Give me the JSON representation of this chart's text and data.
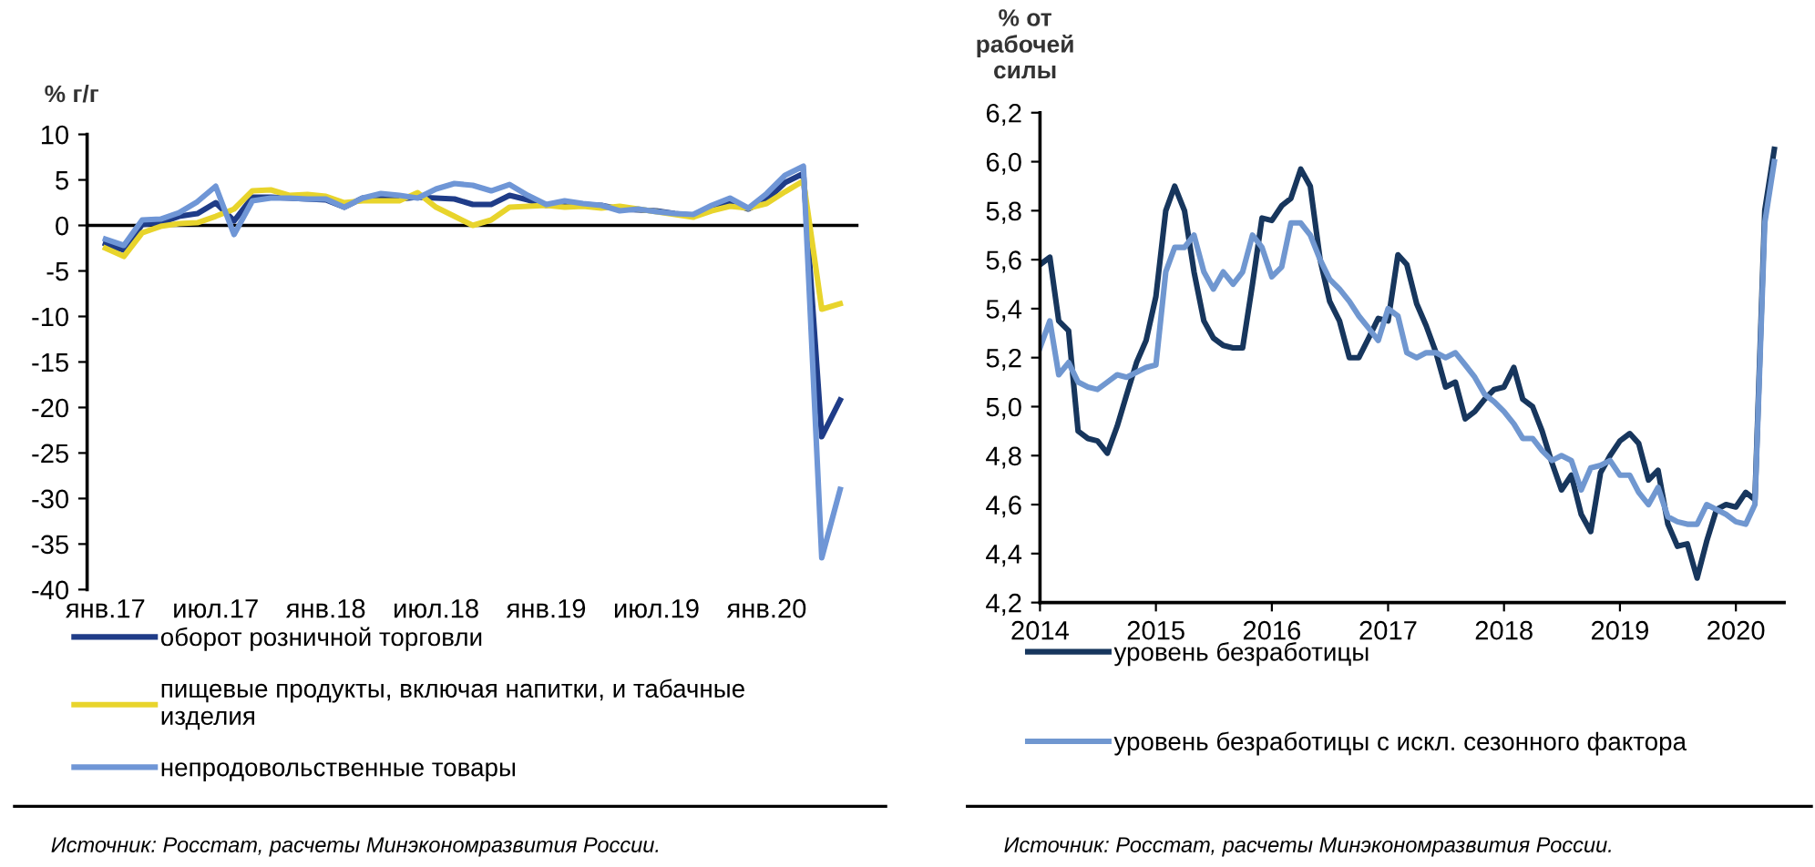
{
  "chart_data": [
    {
      "type": "line",
      "ylabel": "% г/г",
      "categories": [
        "янв.17",
        null,
        null,
        null,
        null,
        null,
        "июл.17",
        null,
        null,
        null,
        null,
        null,
        "янв.18",
        null,
        null,
        null,
        null,
        null,
        "июл.18",
        null,
        null,
        null,
        null,
        null,
        "янв.19",
        null,
        null,
        null,
        null,
        null,
        "июл.19",
        null,
        null,
        null,
        null,
        null,
        "янв.20",
        null,
        null,
        null,
        null
      ],
      "series": [
        {
          "name": "оборот розничной торговли",
          "color": "#1f3c88",
          "values": [
            -2.0,
            -2.7,
            0.1,
            0.3,
            1.0,
            1.3,
            2.5,
            0.5,
            3.1,
            3.1,
            3.0,
            2.9,
            2.8,
            2.0,
            3.0,
            3.1,
            2.9,
            3.1,
            3.0,
            2.9,
            2.3,
            2.3,
            3.3,
            2.8,
            2.2,
            2.4,
            2.3,
            2.2,
            1.8,
            1.7,
            1.6,
            1.3,
            1.1,
            1.9,
            2.5,
            1.8,
            2.8,
            4.7,
            5.7,
            -23.2,
            -19.2
          ]
        },
        {
          "name": "пищевые продукты, включая напитки, и табачные\nизделия",
          "color": "#e8d42c",
          "values": [
            -2.5,
            -3.4,
            -0.8,
            -0.1,
            0.2,
            0.3,
            1.0,
            1.8,
            3.8,
            3.9,
            3.3,
            3.4,
            3.2,
            2.5,
            2.7,
            2.7,
            2.7,
            3.6,
            2.0,
            1.0,
            0.0,
            0.6,
            2.0,
            2.1,
            2.2,
            2.0,
            2.1,
            1.9,
            2.1,
            1.8,
            1.5,
            1.2,
            0.9,
            1.6,
            2.1,
            1.9,
            2.4,
            3.7,
            4.9,
            -9.2,
            -8.6
          ]
        },
        {
          "name": "непродовольственные товары",
          "color": "#6f96d6",
          "values": [
            -1.5,
            -2.2,
            0.6,
            0.7,
            1.4,
            2.6,
            4.3,
            -1.0,
            2.7,
            3.0,
            3.0,
            2.9,
            2.9,
            2.0,
            3.0,
            3.5,
            3.3,
            3.0,
            4.0,
            4.6,
            4.4,
            3.8,
            4.5,
            3.3,
            2.3,
            2.7,
            2.4,
            2.2,
            1.6,
            1.8,
            1.5,
            1.3,
            1.2,
            2.2,
            3.0,
            1.9,
            3.5,
            5.5,
            6.5,
            -36.5,
            -29.0
          ]
        }
      ],
      "ylim": [
        -40,
        10
      ],
      "yticks": [
        -40,
        -35,
        -30,
        -25,
        -20,
        -15,
        -10,
        -5,
        0,
        5,
        10
      ],
      "ref_lines": [
        {
          "axis": "y",
          "value": 0,
          "color": "#000000"
        }
      ],
      "legend": "bottom",
      "grid": false,
      "annotations": [
        "Источник: Росстат, расчеты Минэкономразвития России."
      ]
    },
    {
      "type": "line",
      "ylabel": "% от\nрабочей\nсилы",
      "x": [
        "2014-01",
        "2014-02",
        "2014-03",
        "2014-04",
        "2014-05",
        "2014-06",
        "2014-07",
        "2014-08",
        "2014-09",
        "2014-10",
        "2014-11",
        "2014-12",
        "2015-01",
        "2015-02",
        "2015-03",
        "2015-04",
        "2015-05",
        "2015-06",
        "2015-07",
        "2015-08",
        "2015-09",
        "2015-10",
        "2015-11",
        "2015-12",
        "2016-01",
        "2016-02",
        "2016-03",
        "2016-04",
        "2016-05",
        "2016-06",
        "2016-07",
        "2016-08",
        "2016-09",
        "2016-10",
        "2016-11",
        "2016-12",
        "2017-01",
        "2017-02",
        "2017-03",
        "2017-04",
        "2017-05",
        "2017-06",
        "2017-07",
        "2017-08",
        "2017-09",
        "2017-10",
        "2017-11",
        "2017-12",
        "2018-01",
        "2018-02",
        "2018-03",
        "2018-04",
        "2018-05",
        "2018-06",
        "2018-07",
        "2018-08",
        "2018-09",
        "2018-10",
        "2018-11",
        "2018-12",
        "2019-01",
        "2019-02",
        "2019-03",
        "2019-04",
        "2019-05",
        "2019-06",
        "2019-07",
        "2019-08",
        "2019-09",
        "2019-10",
        "2019-11",
        "2019-12",
        "2020-01",
        "2020-02",
        "2020-03",
        "2020-04",
        "2020-05"
      ],
      "series": [
        {
          "name": "уровень безработицы",
          "color": "#17365d",
          "values": [
            5.58,
            5.61,
            5.35,
            5.31,
            4.9,
            4.87,
            4.86,
            4.81,
            4.92,
            5.05,
            5.18,
            5.27,
            5.45,
            5.8,
            5.9,
            5.8,
            5.55,
            5.35,
            5.28,
            5.25,
            5.24,
            5.24,
            5.5,
            5.77,
            5.76,
            5.82,
            5.85,
            5.97,
            5.9,
            5.6,
            5.43,
            5.35,
            5.2,
            5.2,
            5.28,
            5.36,
            5.35,
            5.62,
            5.58,
            5.42,
            5.33,
            5.22,
            5.08,
            5.1,
            4.95,
            4.98,
            5.03,
            5.07,
            5.08,
            5.16,
            5.03,
            5.0,
            4.9,
            4.77,
            4.66,
            4.72,
            4.56,
            4.49,
            4.73,
            4.8,
            4.86,
            4.89,
            4.85,
            4.7,
            4.74,
            4.52,
            4.43,
            4.44,
            4.3,
            4.45,
            4.58,
            4.6,
            4.59,
            4.65,
            4.62,
            5.8,
            6.05
          ]
        },
        {
          "name": "уровень безработицы с искл. сезонного фактора",
          "color": "#7097d0",
          "values": [
            5.24,
            5.35,
            5.13,
            5.18,
            5.1,
            5.08,
            5.07,
            5.1,
            5.13,
            5.12,
            5.14,
            5.16,
            5.17,
            5.55,
            5.65,
            5.65,
            5.7,
            5.55,
            5.48,
            5.55,
            5.5,
            5.55,
            5.7,
            5.65,
            5.53,
            5.57,
            5.75,
            5.75,
            5.7,
            5.6,
            5.52,
            5.48,
            5.43,
            5.37,
            5.32,
            5.27,
            5.4,
            5.37,
            5.22,
            5.2,
            5.22,
            5.22,
            5.2,
            5.22,
            5.17,
            5.12,
            5.05,
            5.02,
            4.98,
            4.93,
            4.87,
            4.87,
            4.82,
            4.78,
            4.8,
            4.78,
            4.66,
            4.75,
            4.76,
            4.78,
            4.72,
            4.72,
            4.65,
            4.6,
            4.67,
            4.55,
            4.53,
            4.52,
            4.52,
            4.6,
            4.58,
            4.56,
            4.53,
            4.52,
            4.6,
            5.75,
            6.0
          ]
        }
      ],
      "xlim": [
        "2014-01",
        "2020-06"
      ],
      "xticks": [
        {
          "value": "2014-01",
          "label": "2014"
        },
        {
          "value": "2015-01",
          "label": "2015"
        },
        {
          "value": "2016-01",
          "label": "2016"
        },
        {
          "value": "2017-01",
          "label": "2017"
        },
        {
          "value": "2018-01",
          "label": "2018"
        },
        {
          "value": "2019-01",
          "label": "2019"
        },
        {
          "value": "2020-01",
          "label": "2020"
        }
      ],
      "ylim": [
        4.2,
        6.2
      ],
      "yticks": [
        {
          "value": 4.2,
          "label": "4,2"
        },
        {
          "value": 4.4,
          "label": "4,4"
        },
        {
          "value": 4.6,
          "label": "4,6"
        },
        {
          "value": 4.8,
          "label": "4,8"
        },
        {
          "value": 5.0,
          "label": "5,0"
        },
        {
          "value": 5.2,
          "label": "5,2"
        },
        {
          "value": 5.4,
          "label": "5,4"
        },
        {
          "value": 5.6,
          "label": "5,6"
        },
        {
          "value": 5.8,
          "label": "5,8"
        },
        {
          "value": 6.0,
          "label": "6,0"
        },
        {
          "value": 6.2,
          "label": "6,2"
        }
      ],
      "legend": "bottom",
      "grid": false,
      "annotations": [
        "Источник: Росстат, расчеты Минэкономразвития России."
      ]
    }
  ]
}
